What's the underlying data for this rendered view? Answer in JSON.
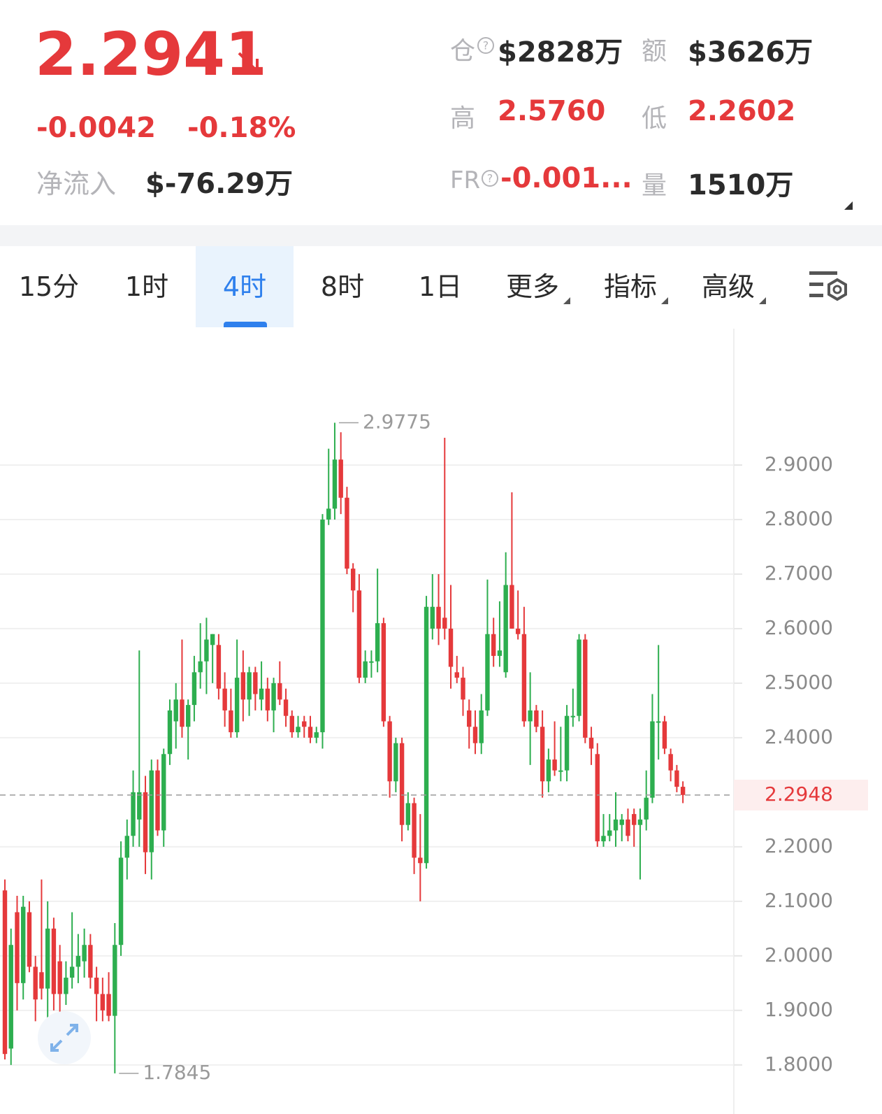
{
  "header": {
    "price": "2.2941",
    "change": "-0.0042",
    "change_pct": "-0.18%",
    "net_inflow_label": "净流入",
    "net_inflow": "$-76.29万",
    "open_interest_label": "仓",
    "open_interest": "$2828万",
    "turnover_label": "额",
    "turnover": "$3626万",
    "high_label": "高",
    "high": "2.5760",
    "low_label": "低",
    "low": "2.2602",
    "funding_label": "FR",
    "funding": "-0.001...",
    "volume_label": "量",
    "volume": "1510万"
  },
  "tabs": [
    "15分",
    "1时",
    "4时",
    "8时",
    "1日",
    "更多",
    "指标",
    "高级"
  ],
  "active_tab": "4时",
  "chart_data": {
    "type": "candlestick",
    "up_color": "#2dae4f",
    "down_color": "#e5393b",
    "ylim": [
      1.71,
      3.15
    ],
    "yticks": [
      {
        "value": 2.9,
        "label": "2.9000"
      },
      {
        "value": 2.8,
        "label": "2.8000"
      },
      {
        "value": 2.7,
        "label": "2.7000"
      },
      {
        "value": 2.6,
        "label": "2.6000"
      },
      {
        "value": 2.5,
        "label": "2.5000"
      },
      {
        "value": 2.4,
        "label": "2.4000"
      },
      {
        "value": 2.2,
        "label": "2.2000"
      },
      {
        "value": 2.1,
        "label": "2.1000"
      },
      {
        "value": 2.0,
        "label": "2.0000"
      },
      {
        "value": 1.9,
        "label": "1.9000"
      },
      {
        "value": 1.8,
        "label": "1.8000"
      }
    ],
    "grid": true,
    "last_price": 2.2948,
    "ohlc": [
      [
        2.12,
        2.14,
        1.81,
        1.82
      ],
      [
        1.83,
        2.05,
        1.8,
        2.02
      ],
      [
        2.08,
        2.11,
        1.9,
        1.95
      ],
      [
        1.95,
        2.11,
        1.92,
        2.09
      ],
      [
        2.08,
        2.1,
        1.97,
        1.98
      ],
      [
        1.98,
        2.0,
        1.88,
        1.92
      ],
      [
        1.97,
        2.14,
        1.92,
        1.94
      ],
      [
        1.94,
        2.1,
        1.87,
        2.05
      ],
      [
        2.05,
        2.07,
        1.9,
        1.93
      ],
      [
        1.99,
        2.02,
        1.88,
        1.93
      ],
      [
        1.93,
        1.99,
        1.91,
        1.96
      ],
      [
        1.96,
        2.08,
        1.94,
        1.98
      ],
      [
        1.98,
        2.04,
        1.95,
        2.0
      ],
      [
        1.99,
        2.05,
        1.96,
        2.02
      ],
      [
        2.02,
        2.04,
        1.94,
        1.96
      ],
      [
        1.96,
        1.98,
        1.88,
        1.93
      ],
      [
        1.93,
        1.96,
        1.88,
        1.9
      ],
      [
        1.93,
        1.97,
        1.88,
        1.89
      ],
      [
        1.89,
        2.06,
        1.7845,
        2.02
      ],
      [
        2.02,
        2.21,
        2.0,
        2.18
      ],
      [
        2.18,
        2.25,
        2.14,
        2.22
      ],
      [
        2.22,
        2.34,
        2.2,
        2.3
      ],
      [
        2.25,
        2.56,
        2.2,
        2.3
      ],
      [
        2.3,
        2.33,
        2.15,
        2.19
      ],
      [
        2.19,
        2.36,
        2.14,
        2.34
      ],
      [
        2.34,
        2.36,
        2.22,
        2.23
      ],
      [
        2.23,
        2.38,
        2.2,
        2.37
      ],
      [
        2.37,
        2.47,
        2.35,
        2.45
      ],
      [
        2.43,
        2.5,
        2.38,
        2.47
      ],
      [
        2.47,
        2.58,
        2.4,
        2.42
      ],
      [
        2.42,
        2.47,
        2.36,
        2.46
      ],
      [
        2.46,
        2.55,
        2.43,
        2.52
      ],
      [
        2.52,
        2.61,
        2.49,
        2.54
      ],
      [
        2.54,
        2.62,
        2.48,
        2.58
      ],
      [
        2.57,
        2.59,
        2.5,
        2.59
      ],
      [
        2.57,
        2.59,
        2.47,
        2.49
      ],
      [
        2.49,
        2.52,
        2.42,
        2.45
      ],
      [
        2.45,
        2.49,
        2.4,
        2.41
      ],
      [
        2.41,
        2.58,
        2.4,
        2.51
      ],
      [
        2.52,
        2.56,
        2.43,
        2.47
      ],
      [
        2.47,
        2.53,
        2.44,
        2.52
      ],
      [
        2.52,
        2.53,
        2.45,
        2.48
      ],
      [
        2.47,
        2.54,
        2.45,
        2.49
      ],
      [
        2.49,
        2.51,
        2.43,
        2.45
      ],
      [
        2.45,
        2.51,
        2.41,
        2.5
      ],
      [
        2.5,
        2.54,
        2.46,
        2.47
      ],
      [
        2.47,
        2.49,
        2.42,
        2.44
      ],
      [
        2.44,
        2.45,
        2.4,
        2.41
      ],
      [
        2.41,
        2.44,
        2.4,
        2.42
      ],
      [
        2.43,
        2.44,
        2.4,
        2.42
      ],
      [
        2.42,
        2.44,
        2.39,
        2.4
      ],
      [
        2.4,
        2.42,
        2.39,
        2.41
      ],
      [
        2.41,
        2.81,
        2.38,
        2.8
      ],
      [
        2.8,
        2.93,
        2.79,
        2.82
      ],
      [
        2.82,
        2.9775,
        2.8,
        2.91
      ],
      [
        2.91,
        2.96,
        2.81,
        2.84
      ],
      [
        2.84,
        2.86,
        2.7,
        2.71
      ],
      [
        2.71,
        2.72,
        2.63,
        2.67
      ],
      [
        2.67,
        2.7,
        2.5,
        2.51
      ],
      [
        2.51,
        2.56,
        2.5,
        2.54
      ],
      [
        2.54,
        2.56,
        2.51,
        2.54
      ],
      [
        2.54,
        2.71,
        2.52,
        2.61
      ],
      [
        2.61,
        2.62,
        2.42,
        2.43
      ],
      [
        2.43,
        2.44,
        2.29,
        2.32
      ],
      [
        2.32,
        2.4,
        2.3,
        2.39
      ],
      [
        2.39,
        2.4,
        2.21,
        2.24
      ],
      [
        2.24,
        2.3,
        2.23,
        2.28
      ],
      [
        2.28,
        2.29,
        2.15,
        2.18
      ],
      [
        2.18,
        2.26,
        2.1,
        2.17
      ],
      [
        2.17,
        2.66,
        2.16,
        2.64
      ],
      [
        2.6,
        2.7,
        2.58,
        2.64
      ],
      [
        2.64,
        2.7,
        2.57,
        2.6
      ],
      [
        2.62,
        2.95,
        2.58,
        2.6
      ],
      [
        2.6,
        2.68,
        2.49,
        2.53
      ],
      [
        2.52,
        2.55,
        2.5,
        2.51
      ],
      [
        2.51,
        2.53,
        2.44,
        2.47
      ],
      [
        2.45,
        2.47,
        2.38,
        2.42
      ],
      [
        2.42,
        2.45,
        2.37,
        2.39
      ],
      [
        2.39,
        2.48,
        2.37,
        2.45
      ],
      [
        2.45,
        2.69,
        2.44,
        2.59
      ],
      [
        2.59,
        2.62,
        2.53,
        2.55
      ],
      [
        2.55,
        2.65,
        2.53,
        2.56
      ],
      [
        2.52,
        2.74,
        2.51,
        2.68
      ],
      [
        2.68,
        2.85,
        2.6,
        2.6
      ],
      [
        2.6,
        2.67,
        2.58,
        2.59
      ],
      [
        2.59,
        2.64,
        2.42,
        2.43
      ],
      [
        2.43,
        2.52,
        2.35,
        2.45
      ],
      [
        2.45,
        2.46,
        2.41,
        2.42
      ],
      [
        2.42,
        2.45,
        2.29,
        2.32
      ],
      [
        2.32,
        2.38,
        2.3,
        2.36
      ],
      [
        2.36,
        2.43,
        2.33,
        2.34
      ],
      [
        2.34,
        2.42,
        2.32,
        2.34
      ],
      [
        2.34,
        2.46,
        2.32,
        2.44
      ],
      [
        2.44,
        2.49,
        2.42,
        2.44
      ],
      [
        2.44,
        2.59,
        2.43,
        2.58
      ],
      [
        2.58,
        2.59,
        2.39,
        2.4
      ],
      [
        2.4,
        2.42,
        2.35,
        2.38
      ],
      [
        2.37,
        2.39,
        2.2,
        2.21
      ],
      [
        2.21,
        2.26,
        2.2,
        2.22
      ],
      [
        2.22,
        2.26,
        2.21,
        2.23
      ],
      [
        2.23,
        2.3,
        2.2,
        2.25
      ],
      [
        2.24,
        2.26,
        2.21,
        2.25
      ],
      [
        2.25,
        2.27,
        2.21,
        2.22
      ],
      [
        2.26,
        2.27,
        2.2,
        2.24
      ],
      [
        2.24,
        2.27,
        2.14,
        2.25
      ],
      [
        2.25,
        2.34,
        2.23,
        2.29
      ],
      [
        2.29,
        2.48,
        2.28,
        2.43
      ],
      [
        2.43,
        2.57,
        2.36,
        2.43
      ],
      [
        2.43,
        2.44,
        2.37,
        2.38
      ],
      [
        2.37,
        2.38,
        2.32,
        2.34
      ],
      [
        2.34,
        2.35,
        2.3,
        2.31
      ],
      [
        2.31,
        2.32,
        2.28,
        2.295
      ]
    ]
  }
}
